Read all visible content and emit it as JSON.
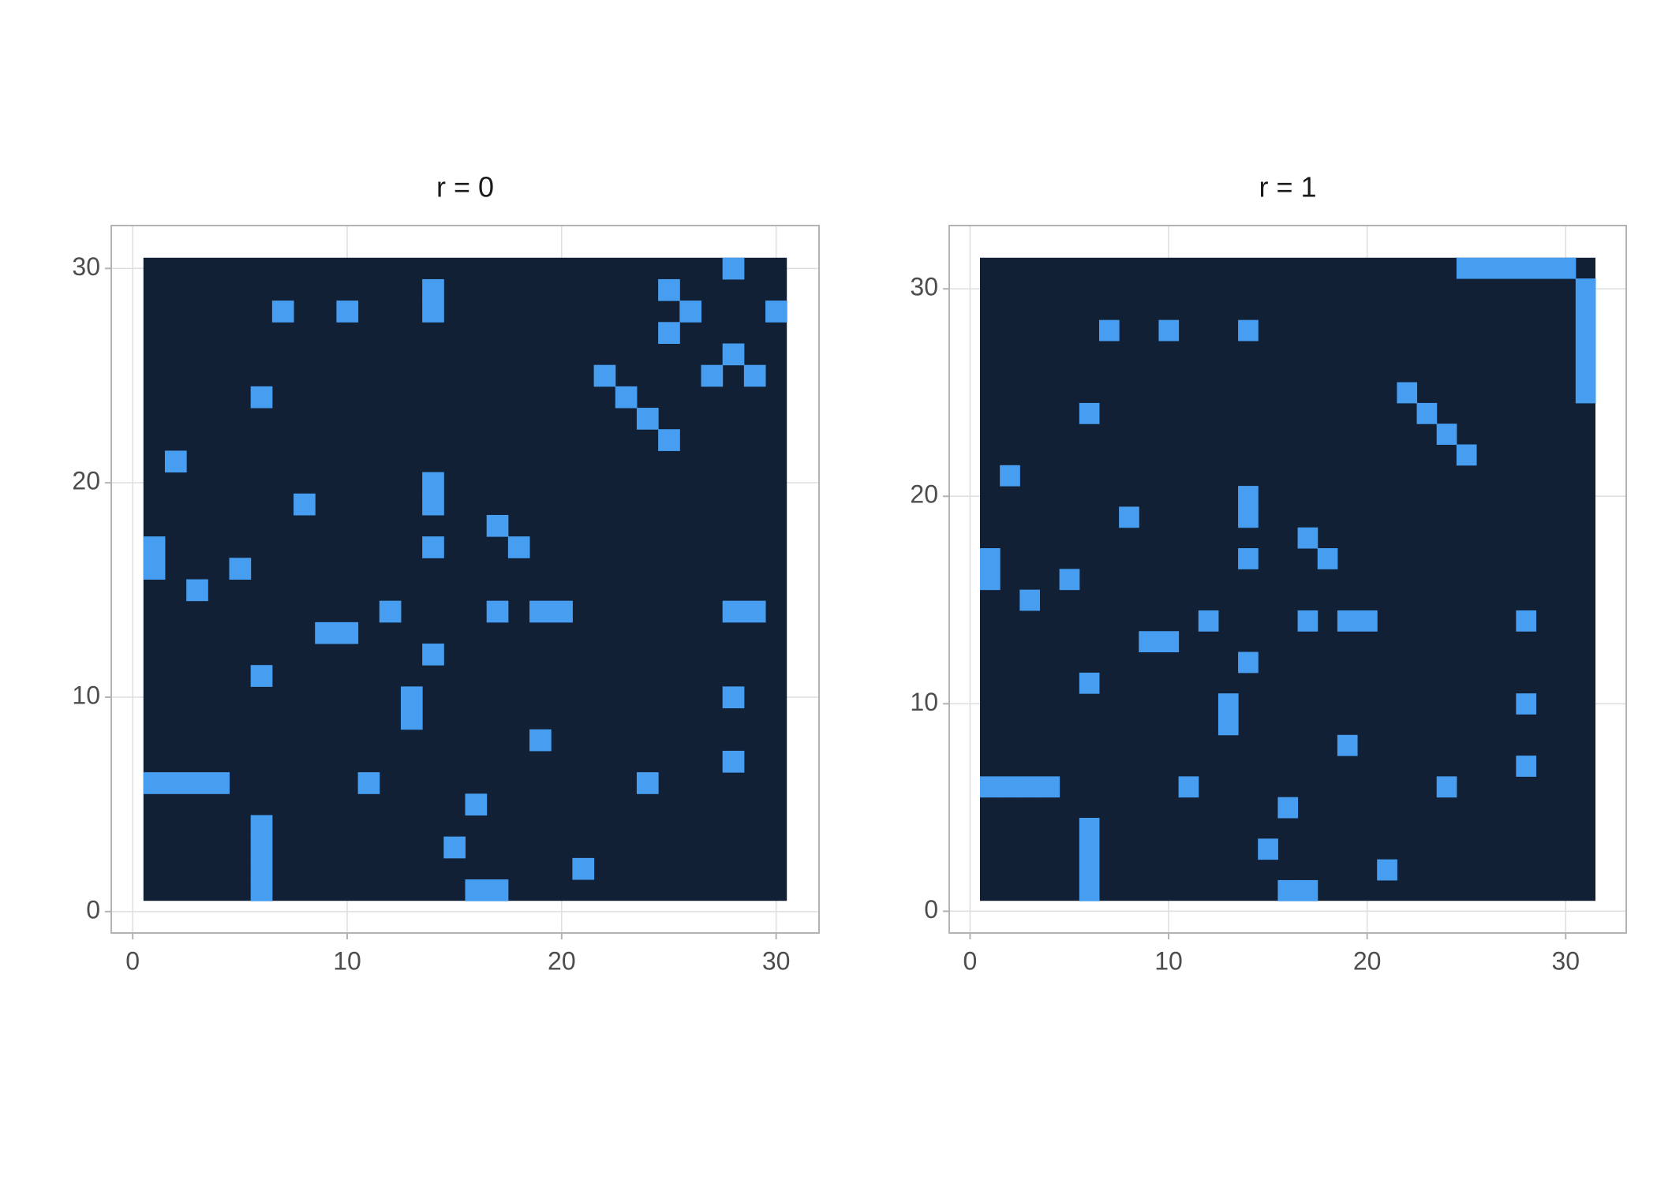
{
  "chart_data": [
    {
      "type": "tile",
      "title": "r = 0",
      "size": 30,
      "fill_color": "#479ef0",
      "background_color": "#122035",
      "x": [
        28,
        25,
        14,
        14,
        7,
        10,
        26,
        30,
        25,
        28,
        22,
        27,
        29,
        6,
        23,
        24,
        25,
        2,
        14,
        14,
        8,
        17,
        1,
        1,
        14,
        18,
        5,
        3,
        12,
        17,
        19,
        20,
        28,
        29,
        9,
        10,
        14,
        6,
        28,
        13,
        13,
        19,
        28,
        1,
        2,
        3,
        4,
        11,
        24,
        16,
        6,
        6,
        6,
        6,
        15,
        21,
        16,
        17
      ],
      "y": [
        30,
        29,
        29,
        28,
        28,
        28,
        28,
        28,
        27,
        26,
        25,
        25,
        25,
        24,
        24,
        23,
        22,
        21,
        20,
        19,
        19,
        18,
        17,
        16,
        17,
        17,
        16,
        15,
        14,
        14,
        14,
        14,
        14,
        14,
        13,
        13,
        12,
        11,
        10,
        10,
        9,
        8,
        7,
        6,
        6,
        6,
        6,
        6,
        6,
        5,
        4,
        3,
        2,
        1,
        3,
        2,
        1,
        1
      ],
      "xlim": [
        -1,
        32
      ],
      "ylim": [
        -1,
        32
      ],
      "xticks": [
        0,
        10,
        20,
        30
      ],
      "yticks": [
        0,
        10,
        20,
        30
      ],
      "grid": true
    },
    {
      "type": "tile",
      "title": "r = 1",
      "size": 31,
      "fill_color": "#479ef0",
      "background_color": "#122035",
      "x": [
        25,
        26,
        27,
        28,
        29,
        30,
        31,
        31,
        31,
        31,
        31,
        31,
        7,
        10,
        14,
        22,
        6,
        23,
        24,
        25,
        2,
        14,
        14,
        8,
        17,
        1,
        1,
        14,
        18,
        5,
        3,
        12,
        17,
        19,
        20,
        28,
        9,
        10,
        14,
        6,
        28,
        13,
        13,
        19,
        28,
        1,
        2,
        3,
        4,
        11,
        24,
        16,
        6,
        6,
        6,
        6,
        15,
        21,
        16,
        17
      ],
      "y": [
        31,
        31,
        31,
        31,
        31,
        31,
        30,
        29,
        28,
        27,
        26,
        25,
        28,
        28,
        28,
        25,
        24,
        24,
        23,
        22,
        21,
        20,
        19,
        19,
        18,
        17,
        16,
        17,
        17,
        16,
        15,
        14,
        14,
        14,
        14,
        14,
        13,
        13,
        12,
        11,
        10,
        10,
        9,
        8,
        7,
        6,
        6,
        6,
        6,
        6,
        6,
        5,
        4,
        3,
        2,
        1,
        3,
        2,
        1,
        1
      ],
      "xlim": [
        -1.05,
        33.05
      ],
      "ylim": [
        -1.05,
        33.05
      ],
      "xticks": [
        0,
        10,
        20,
        30
      ],
      "yticks": [
        0,
        10,
        20,
        30
      ],
      "grid": true
    }
  ]
}
